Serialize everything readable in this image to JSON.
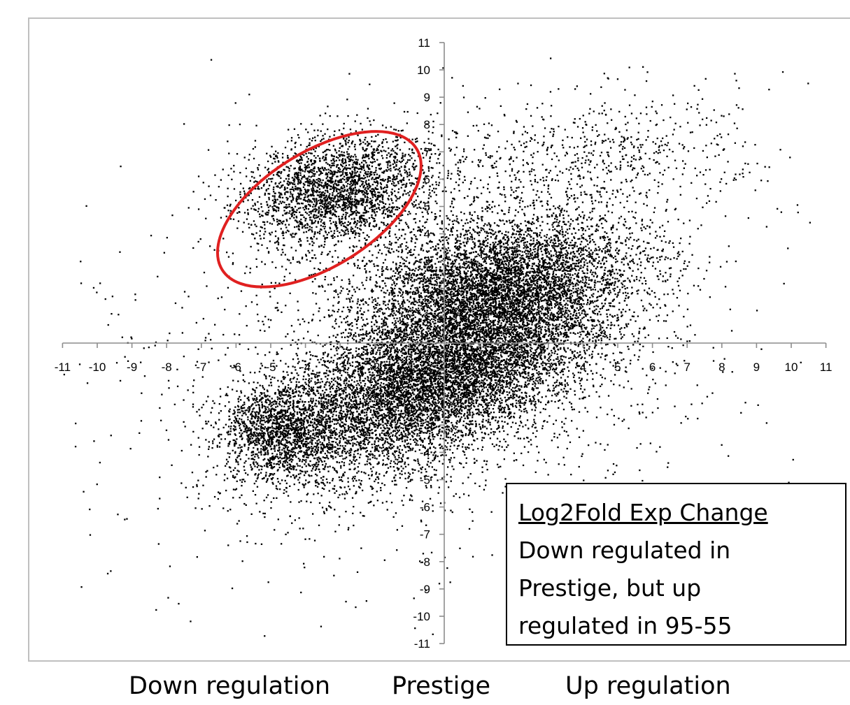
{
  "chart_data": {
    "type": "scatter",
    "title": "",
    "xlabel": "",
    "ylabel": "",
    "xlim": [
      -11,
      11
    ],
    "ylim": [
      -11,
      11
    ],
    "x_ticks": [
      "-11",
      "-10",
      "-9",
      "-8",
      "-7",
      "-6",
      "-5",
      "-4",
      "-3",
      "-2",
      "-1",
      "1",
      "2",
      "3",
      "4",
      "5",
      "6",
      "7",
      "8",
      "9",
      "10",
      "11"
    ],
    "y_ticks": [
      "11",
      "10",
      "9",
      "8",
      "7",
      "6",
      "5",
      "4",
      "3",
      "2",
      "1",
      "-1",
      "-2",
      "-3",
      "-4",
      "-5",
      "-6",
      "-7",
      "-8",
      "-9",
      "-10",
      "-11"
    ],
    "point_color": "#000000",
    "highlight": {
      "shape": "ellipse",
      "color": "#e02020",
      "center": [
        -3.6,
        4.9
      ],
      "semi_axes": [
        3.3,
        2.1
      ],
      "rotation_deg": 32
    },
    "series": [
      {
        "clusters": [
          {
            "center": [
              -0.2,
              -1.2
            ],
            "spread": [
              2.6,
              1.3
            ],
            "rotation_deg": 32,
            "count": 9000
          },
          {
            "center": [
              1.6,
              2.2
            ],
            "spread": [
              2.0,
              1.2
            ],
            "rotation_deg": 15,
            "count": 5000
          },
          {
            "center": [
              -3.1,
              5.6
            ],
            "spread": [
              1.4,
              1.0
            ],
            "rotation_deg": 20,
            "count": 2600
          },
          {
            "center": [
              -4.8,
              -3.2
            ],
            "spread": [
              0.8,
              0.9
            ],
            "rotation_deg": 0,
            "count": 1400
          },
          {
            "center": [
              4.0,
              6.5
            ],
            "spread": [
              2.3,
              1.3
            ],
            "rotation_deg": 10,
            "count": 700
          },
          {
            "center": [
              -0.5,
              0.0
            ],
            "spread": [
              4.8,
              4.0
            ],
            "rotation_deg": 25,
            "count": 1500
          }
        ]
      }
    ]
  },
  "legend": {
    "title": "Log2Fold Exp Change",
    "body": "Down regulated in\nPrestige, but up\nregulated in 95-55"
  },
  "footer": {
    "left": "Down regulation",
    "center": "Prestige",
    "right": "Up regulation"
  }
}
